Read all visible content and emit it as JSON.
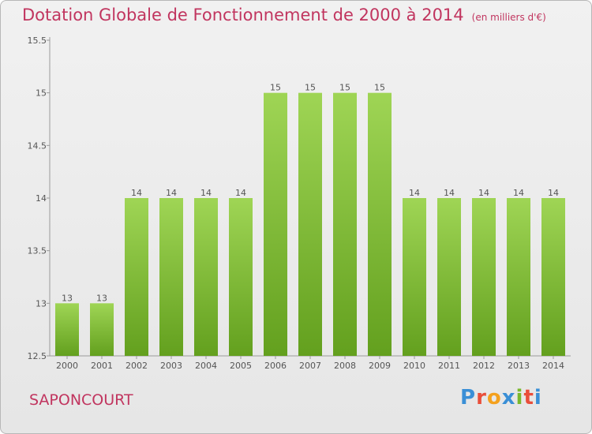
{
  "title": "Dotation Globale de Fonctionnement de 2000 à 2014",
  "unit": "(en milliers d'€)",
  "commune": "SAPONCOURT",
  "brand": "Proxiti",
  "colors": {
    "title": "#c1355f",
    "bar_top": "#9fd555",
    "bar_bottom": "#63a01e"
  },
  "chart_data": {
    "type": "bar",
    "title": "Dotation Globale de Fonctionnement de 2000 à 2014",
    "xlabel": "",
    "ylabel": "",
    "categories": [
      "2000",
      "2001",
      "2002",
      "2003",
      "2004",
      "2005",
      "2006",
      "2007",
      "2008",
      "2009",
      "2010",
      "2011",
      "2012",
      "2013",
      "2014"
    ],
    "values": [
      13,
      13,
      14,
      14,
      14,
      14,
      15,
      15,
      15,
      15,
      14,
      14,
      14,
      14,
      14
    ],
    "data_labels": [
      "13",
      "13",
      "14",
      "14",
      "14",
      "14",
      "15",
      "15",
      "15",
      "15",
      "14",
      "14",
      "14",
      "14",
      "14"
    ],
    "ylim": [
      12.5,
      15.5
    ],
    "yticks": [
      12.5,
      13,
      13.5,
      14,
      14.5,
      15,
      15.5
    ],
    "ytick_labels": [
      "12.5",
      "13",
      "13.5",
      "14",
      "14.5",
      "15",
      "15.5"
    ],
    "grid": false,
    "legend": "none"
  }
}
